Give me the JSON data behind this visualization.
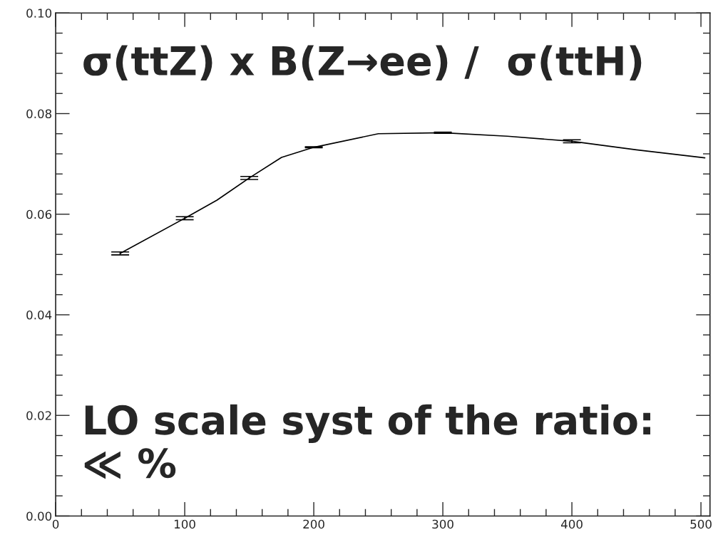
{
  "chart_data": {
    "type": "line",
    "x": [
      50,
      100,
      125,
      150,
      175,
      200,
      250,
      300,
      350,
      400,
      450,
      503
    ],
    "series": [
      {
        "color": "#000000",
        "values": [
          0.0522,
          0.0592,
          0.0628,
          0.0672,
          0.0713,
          0.0733,
          0.076,
          0.0762,
          0.0755,
          0.0745,
          0.0728,
          0.0712
        ],
        "errors": [
          0.0003,
          0.0003,
          null,
          0.0003,
          null,
          0.0001,
          null,
          0.0001,
          null,
          0.0003,
          null,
          null
        ]
      }
    ],
    "xlim": [
      0,
      507
    ],
    "ylim": [
      0,
      0.1
    ],
    "xticks": [
      0,
      {
        "value": 20,
        "label": null
      },
      {
        "value": 40,
        "label": null
      },
      {
        "value": 60,
        "label": null
      },
      {
        "value": 80,
        "label": null
      },
      100,
      {
        "value": 120,
        "label": null
      },
      {
        "value": 140,
        "label": null
      },
      {
        "value": 160,
        "label": null
      },
      {
        "value": 180,
        "label": null
      },
      200,
      {
        "value": 220,
        "label": null
      },
      {
        "value": 240,
        "label": null
      },
      {
        "value": 260,
        "label": null
      },
      {
        "value": 280,
        "label": null
      },
      300,
      {
        "value": 320,
        "label": null
      },
      {
        "value": 340,
        "label": null
      },
      {
        "value": 360,
        "label": null
      },
      {
        "value": 380,
        "label": null
      },
      400,
      {
        "value": 420,
        "label": null
      },
      {
        "value": 440,
        "label": null
      },
      {
        "value": 460,
        "label": null
      },
      {
        "value": 480,
        "label": null
      },
      500
    ],
    "yticks": [
      {
        "value": 0,
        "label": "0.00"
      },
      {
        "value": 0.004,
        "label": null
      },
      {
        "value": 0.008,
        "label": null
      },
      {
        "value": 0.012,
        "label": null
      },
      {
        "value": 0.016,
        "label": null
      },
      {
        "value": 0.02,
        "label": "0.02"
      },
      {
        "value": 0.024,
        "label": null
      },
      {
        "value": 0.028,
        "label": null
      },
      {
        "value": 0.032,
        "label": null
      },
      {
        "value": 0.036,
        "label": null
      },
      {
        "value": 0.04,
        "label": "0.04"
      },
      {
        "value": 0.044,
        "label": null
      },
      {
        "value": 0.048,
        "label": null
      },
      {
        "value": 0.052,
        "label": null
      },
      {
        "value": 0.056,
        "label": null
      },
      {
        "value": 0.06,
        "label": "0.06"
      },
      {
        "value": 0.064,
        "label": null
      },
      {
        "value": 0.068,
        "label": null
      },
      {
        "value": 0.072,
        "label": null
      },
      {
        "value": 0.076,
        "label": null
      },
      {
        "value": 0.08,
        "label": "0.08"
      },
      {
        "value": 0.084,
        "label": null
      },
      {
        "value": 0.088,
        "label": null
      },
      {
        "value": 0.092,
        "label": null
      },
      {
        "value": 0.096,
        "label": null
      },
      {
        "value": 0.1,
        "label": "0.10"
      }
    ],
    "marker": "none",
    "line_style": "solid",
    "grid": false,
    "legend": false,
    "annotations": [
      "σ(ttZ) x B(Z→ee) /  σ(ttH)",
      "LO scale syst of the ratio:\n≪ %"
    ]
  }
}
